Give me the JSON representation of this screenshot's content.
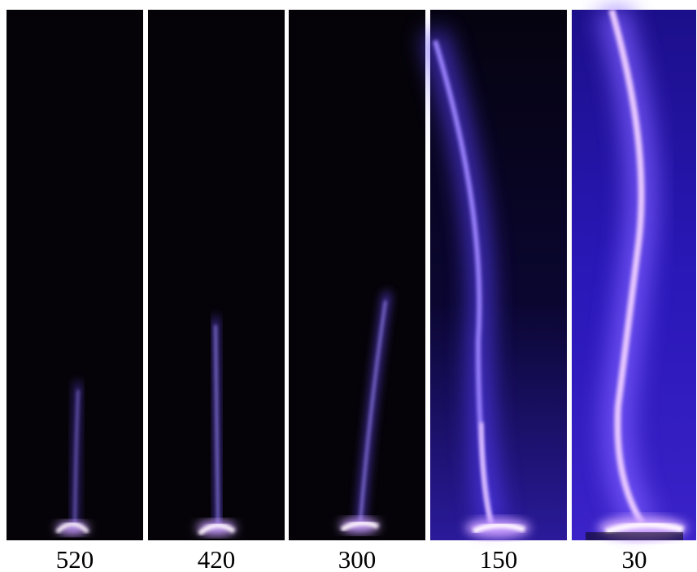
{
  "panels": [
    {
      "label": "520"
    },
    {
      "label": "420"
    },
    {
      "label": "300"
    },
    {
      "label": "150"
    },
    {
      "label": "30"
    }
  ]
}
